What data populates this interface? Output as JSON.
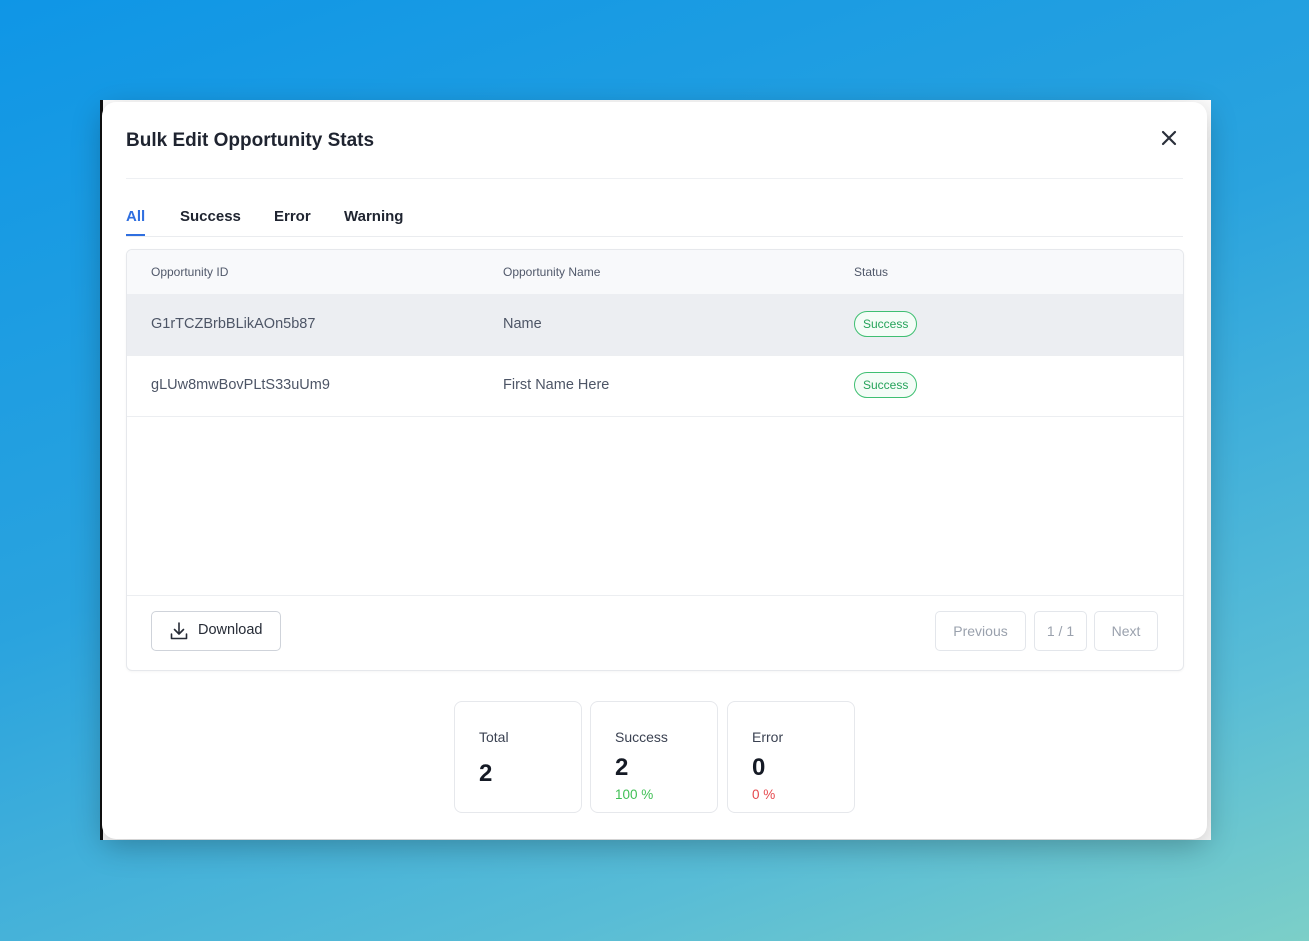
{
  "modal": {
    "title": "Bulk Edit Opportunity Stats"
  },
  "tabs": [
    {
      "label": "All",
      "active": true
    },
    {
      "label": "Success",
      "active": false
    },
    {
      "label": "Error",
      "active": false
    },
    {
      "label": "Warning",
      "active": false
    }
  ],
  "table": {
    "columns": [
      "Opportunity ID",
      "Opportunity Name",
      "Status"
    ],
    "rows": [
      {
        "id": "G1rTCZBrbBLikAOn5b87",
        "name": "Name",
        "status": "Success"
      },
      {
        "id": "gLUw8mwBovPLtS33uUm9",
        "name": "First Name Here",
        "status": "Success"
      }
    ]
  },
  "footer": {
    "download_label": "Download",
    "previous_label": "Previous",
    "page_indicator": "1 / 1",
    "next_label": "Next"
  },
  "stats": [
    {
      "label": "Total",
      "value": "2",
      "percent": ""
    },
    {
      "label": "Success",
      "value": "2",
      "percent": "100 %",
      "color": "#3fbf54"
    },
    {
      "label": "Error",
      "value": "0",
      "percent": "0 %",
      "color": "#e5484d"
    }
  ],
  "colors": {
    "accent": "#2f6fe0",
    "success": "#25a35a",
    "error": "#e5484d"
  }
}
